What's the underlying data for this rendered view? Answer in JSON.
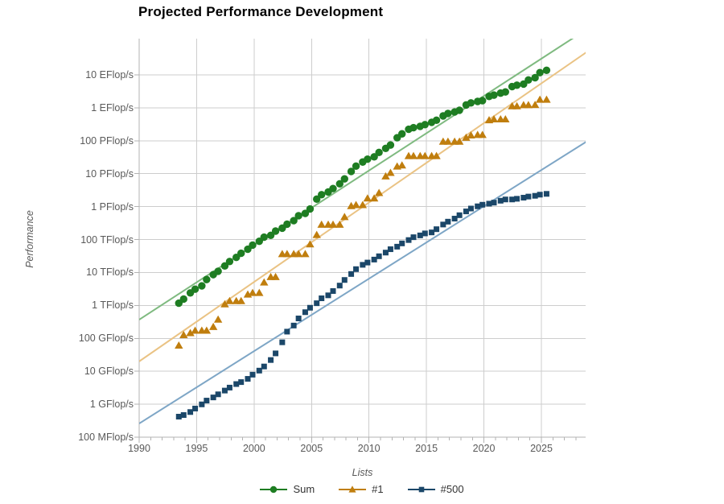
{
  "title": "Projected Performance Development",
  "axes": {
    "x_title": "Lists",
    "y_title": "Performance",
    "x_ticks": [
      "1990",
      "1995",
      "2000",
      "2005",
      "2010",
      "2015",
      "2020",
      "2025"
    ],
    "y_ticks": [
      "10 EFlop/s",
      "1 EFlop/s",
      "100 PFlop/s",
      "10 PFlop/s",
      "1 PFlop/s",
      "100 TFlop/s",
      "10 TFlop/s",
      "1 TFlop/s",
      "100 GFlop/s",
      "10 GFlop/s",
      "1 GFlop/s",
      "100 MFlop/s"
    ]
  },
  "legend": {
    "items": [
      {
        "label": "Sum",
        "marker": "circle"
      },
      {
        "label": "#1",
        "marker": "triangle"
      },
      {
        "label": "#500",
        "marker": "square"
      }
    ]
  },
  "colors": {
    "grid": "#cdcdcd",
    "axis": "#b3b3b3",
    "tick_text": "#595959",
    "title_text": "#000000",
    "legend_text": "#333333"
  },
  "chart_data": {
    "type": "scatter",
    "title": "Projected Performance Development",
    "xlabel": "Lists",
    "ylabel": "Performance",
    "y_scale": "log",
    "y_unit": "GFlop/s",
    "xlim": [
      1990,
      2028.85
    ],
    "ylim_flops": [
      100000000.0,
      1e+19
    ],
    "grid": "on",
    "legend_position": "bottom",
    "x": [
      1993.45,
      1993.87,
      1994.45,
      1994.87,
      1995.45,
      1995.87,
      1996.45,
      1996.87,
      1997.45,
      1997.87,
      1998.45,
      1998.87,
      1999.45,
      1999.87,
      2000.45,
      2000.87,
      2001.45,
      2001.87,
      2002.45,
      2002.87,
      2003.45,
      2003.87,
      2004.45,
      2004.87,
      2005.45,
      2005.87,
      2006.45,
      2006.87,
      2007.45,
      2007.87,
      2008.45,
      2008.87,
      2009.45,
      2009.87,
      2010.45,
      2010.87,
      2011.45,
      2011.87,
      2012.45,
      2012.87,
      2013.45,
      2013.87,
      2014.45,
      2014.87,
      2015.45,
      2015.87,
      2016.45,
      2016.87,
      2017.45,
      2017.87,
      2018.45,
      2018.87,
      2019.45,
      2019.87,
      2020.45,
      2020.87,
      2021.45,
      2021.87,
      2022.45,
      2022.87,
      2023.45,
      2023.87,
      2024.45,
      2024.87,
      2025.45
    ],
    "series": [
      {
        "name": "Sum",
        "marker": "circle",
        "color": "#1e7d22",
        "trend_color": "#7fba80",
        "values": [
          1170,
          1560,
          2400,
          3110,
          3930,
          6100,
          8610,
          10900,
          15800,
          21600,
          28700,
          38300,
          50900,
          67800,
          88800,
          118400,
          134400,
          181000,
          222000,
          293000,
          375000,
          528000,
          624000,
          850000,
          1690000,
          2300000,
          2790000,
          3540000,
          4920000,
          6970000,
          11700000,
          16950000,
          22600000,
          27600000,
          32400000,
          44200000,
          58700000,
          74200000,
          123400000,
          162000000,
          223000000,
          250000000,
          274000000,
          309000000,
          363000000,
          420000000,
          566700000,
          672000000,
          749000000,
          845000000,
          1220000000,
          1410000000,
          1560000000,
          1650000000,
          2220000000,
          2430000000,
          2800000000,
          3040000000,
          4400000000,
          4860000000,
          5240000000,
          7010000000,
          8210000000,
          11720000000,
          13800000000
        ]
      },
      {
        "name": "#1",
        "marker": "triangle",
        "color": "#c07e0e",
        "trend_color": "#eac384",
        "values": [
          59.7,
          124,
          143.4,
          170,
          170,
          170,
          220.4,
          368.2,
          1068,
          1338,
          1338,
          1338,
          2121,
          2379,
          2379,
          4938,
          7226,
          7226,
          35860,
          35860,
          35860,
          35860,
          35860,
          70720,
          136800,
          280600,
          280600,
          280600,
          280600,
          478200,
          1026000,
          1105000,
          1105000,
          1759000,
          1759000,
          2566000,
          8162000,
          10510000,
          16324750,
          17590000,
          33862700,
          33862700,
          33862700,
          33862700,
          33862700,
          33862700,
          93014600,
          93014600,
          93014600,
          93014600,
          122300000,
          143500000,
          148600000,
          148600000,
          415530000,
          442010000,
          442010000,
          442010000,
          1102000000,
          1102000000,
          1194000000,
          1194000000,
          1206000000,
          1742000000,
          1742000000
        ]
      },
      {
        "name": "#500",
        "marker": "square",
        "color": "#1b4769",
        "trend_color": "#7ea6c6",
        "values": [
          0.42,
          0.47,
          0.58,
          0.74,
          0.99,
          1.29,
          1.61,
          2.0,
          2.6,
          3.2,
          4.1,
          4.7,
          5.9,
          7.9,
          10.5,
          14,
          22,
          35,
          76,
          160,
          245,
          403,
          624,
          850,
          1166,
          1646,
          2026,
          2737,
          4005,
          5930,
          9000,
          12640,
          17100,
          20050,
          24670,
          31100,
          40190,
          50900,
          60820,
          76450,
          96620,
          117800,
          133700,
          153600,
          164800,
          206300,
          286100,
          349300,
          432200,
          548700,
          716000,
          874800,
          1022000,
          1142000,
          1230000,
          1320000,
          1510000,
          1650000,
          1650000,
          1730000,
          1870000,
          2020000,
          2130000,
          2310000,
          2440000
        ]
      }
    ],
    "trend_lines": [
      {
        "series": "Sum",
        "start_year": 1990,
        "start_gflops": 370,
        "end_year": 2029,
        "end_gflops": 250000000000.0
      },
      {
        "series": "#1",
        "start_year": 1990,
        "start_gflops": 20,
        "end_year": 2029,
        "end_gflops": 51000000000.0
      },
      {
        "series": "#500",
        "start_year": 1990,
        "start_gflops": 0.26,
        "end_year": 2029,
        "end_gflops": 98000000.0
      }
    ]
  }
}
